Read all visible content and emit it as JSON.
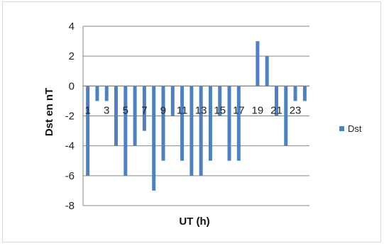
{
  "chart_data": {
    "type": "bar",
    "categories": [
      "1",
      "2",
      "3",
      "4",
      "5",
      "6",
      "7",
      "8",
      "9",
      "10",
      "11",
      "12",
      "13",
      "14",
      "15",
      "16",
      "17",
      "18",
      "19",
      "20",
      "21",
      "22",
      "23",
      "24"
    ],
    "x_tick_labels": [
      "1",
      "3",
      "5",
      "7",
      "9",
      "11",
      "13",
      "15",
      "17",
      "19",
      "21",
      "23"
    ],
    "series": [
      {
        "name": "Dst",
        "values": [
          -6,
          -1,
          -1,
          -4,
          -6,
          -4,
          -3,
          -7,
          -5,
          -2,
          -5,
          -6,
          -6,
          -5,
          -2,
          -5,
          -5,
          0,
          3,
          2,
          -2,
          -4,
          -1,
          -1
        ]
      }
    ],
    "xlabel": "UT (h)",
    "ylabel": "Dst  en  nT",
    "ylim": [
      -8,
      4
    ],
    "y_ticks": [
      "-8",
      "-6",
      "-4",
      "-2",
      "0",
      "2",
      "4"
    ],
    "grid": true,
    "legend_position": "right",
    "colors": {
      "bar": "#4f81bd",
      "grid": "#868686"
    }
  }
}
